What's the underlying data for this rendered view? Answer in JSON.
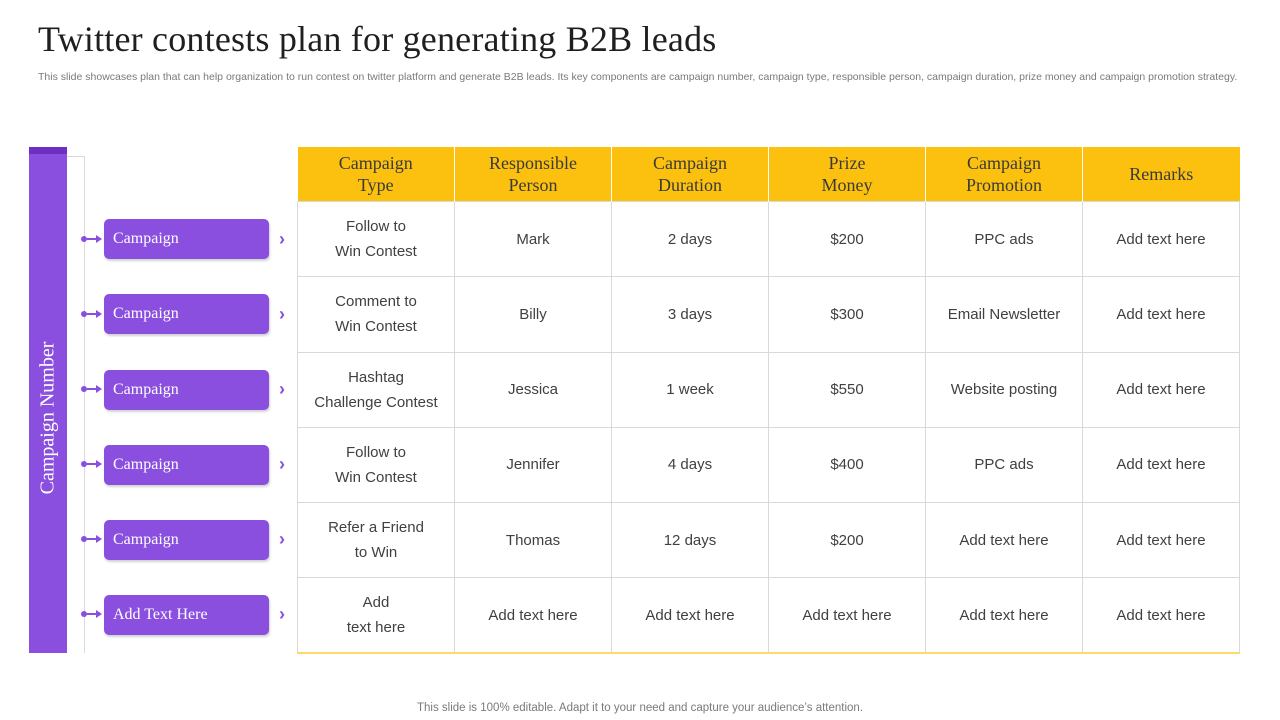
{
  "title": "Twitter contests plan for generating B2B leads",
  "subtitle": "This slide showcases plan that can help organization to run contest on twitter platform and generate B2B leads. Its key components are campaign number, campaign type, responsible person, campaign duration, prize money and campaign promotion strategy.",
  "side_label": "Campaign Number",
  "campaigns": [
    "Campaign",
    "Campaign",
    "Campaign",
    "Campaign",
    "Campaign",
    "Add Text Here"
  ],
  "table": {
    "headers": [
      [
        "Campaign",
        "Type"
      ],
      [
        "Responsible",
        "Person"
      ],
      [
        "Campaign",
        "Duration"
      ],
      [
        "Prize",
        "Money"
      ],
      [
        "Campaign",
        "Promotion"
      ],
      [
        "Remarks"
      ]
    ],
    "rows": [
      [
        [
          "Follow to",
          "Win Contest"
        ],
        [
          "Mark"
        ],
        [
          "2 days"
        ],
        [
          "$200"
        ],
        [
          "PPC ads"
        ],
        [
          "Add text here"
        ]
      ],
      [
        [
          "Comment to",
          "Win Contest"
        ],
        [
          "Billy"
        ],
        [
          "3 days"
        ],
        [
          "$300"
        ],
        [
          "Email Newsletter"
        ],
        [
          "Add text here"
        ]
      ],
      [
        [
          "Hashtag",
          "Challenge Contest"
        ],
        [
          "Jessica"
        ],
        [
          "1 week"
        ],
        [
          "$550"
        ],
        [
          "Website posting"
        ],
        [
          "Add text here"
        ]
      ],
      [
        [
          "Follow to",
          "Win Contest"
        ],
        [
          "Jennifer"
        ],
        [
          "4 days"
        ],
        [
          "$400"
        ],
        [
          "PPC ads"
        ],
        [
          "Add text here"
        ]
      ],
      [
        [
          "Refer a Friend",
          "to Win"
        ],
        [
          "Thomas"
        ],
        [
          "12 days"
        ],
        [
          "$200"
        ],
        [
          "Add text here"
        ],
        [
          "Add text here"
        ]
      ],
      [
        [
          "Add",
          "text here"
        ],
        [
          "Add text here"
        ],
        [
          "Add text here"
        ],
        [
          "Add text here"
        ],
        [
          "Add text here"
        ],
        [
          "Add text here"
        ]
      ]
    ]
  },
  "footer": "This slide is 100% editable. Adapt it to your need and capture your audience’s attention.",
  "colors": {
    "accent_purple": "#8a4fde",
    "header_yellow": "#fcc10e"
  },
  "icons": {
    "row_marker": "arrow-connector-icon",
    "chevron": "chevron-right-icon"
  }
}
